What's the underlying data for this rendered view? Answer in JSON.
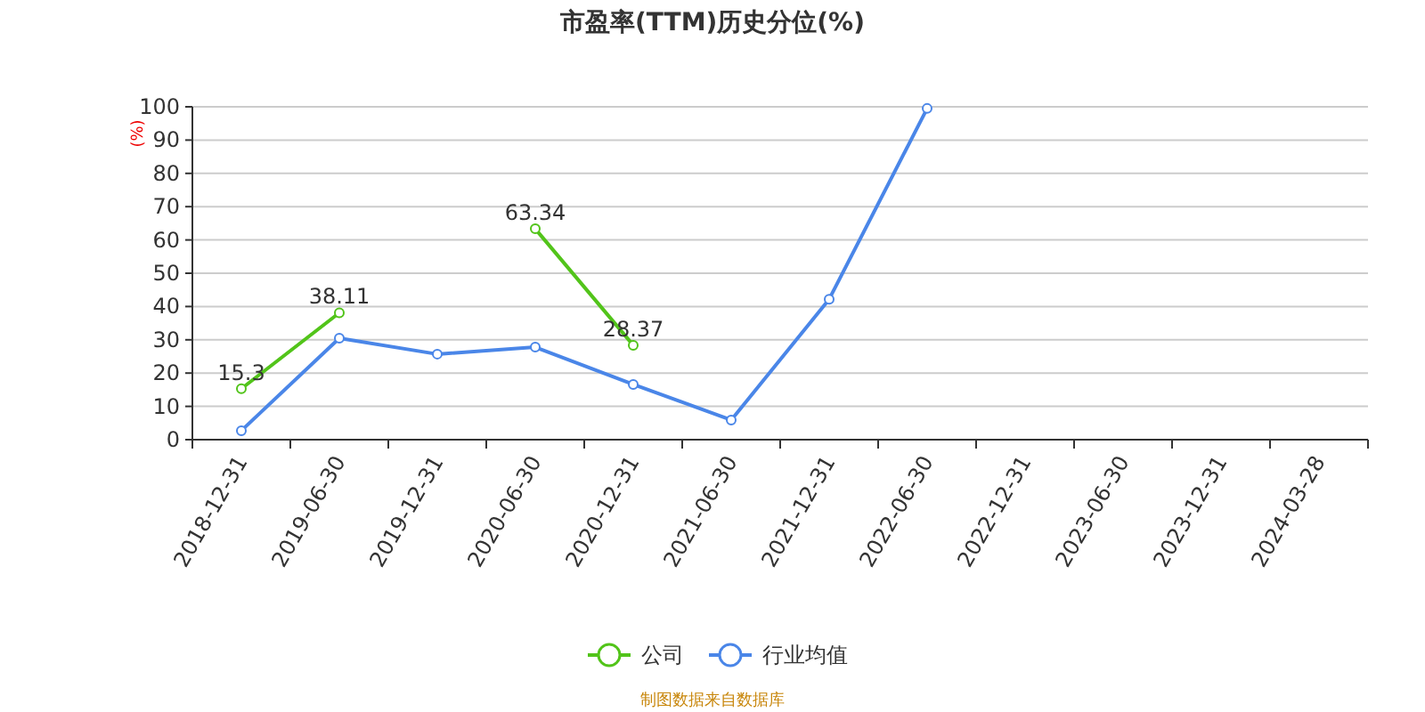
{
  "chart_data": {
    "type": "line",
    "title": "市盈率(TTM)历史分位(%)",
    "ylabel": "(%)",
    "categories": [
      "2018-12-31",
      "2019-06-30",
      "2019-12-31",
      "2020-06-30",
      "2020-12-31",
      "2021-06-30",
      "2021-12-31",
      "2022-06-30",
      "2022-12-31",
      "2023-06-30",
      "2023-12-31",
      "2024-03-28"
    ],
    "series": [
      {
        "name": "公司",
        "color": "#52c41a",
        "values": [
          15.3,
          38.11,
          null,
          63.34,
          28.37,
          null,
          null,
          null,
          null,
          null,
          null,
          null
        ],
        "value_labels": [
          "15.3",
          "38.11",
          null,
          "63.34",
          "28.37",
          null,
          null,
          null,
          null,
          null,
          null,
          null
        ]
      },
      {
        "name": "行业均值",
        "color": "#4a86e8",
        "values": [
          2.7,
          30.5,
          25.7,
          27.8,
          16.6,
          5.9,
          42.2,
          99.5,
          null,
          null,
          null,
          null
        ]
      }
    ],
    "ylim": [
      0,
      100
    ],
    "yticks": [
      0,
      10,
      20,
      30,
      40,
      50,
      60,
      70,
      80,
      90,
      100
    ],
    "grid": "y",
    "legend": "bottom",
    "marker": "circle",
    "line_style": "solid",
    "annotations": [
      "制图数据来自数据库"
    ]
  }
}
